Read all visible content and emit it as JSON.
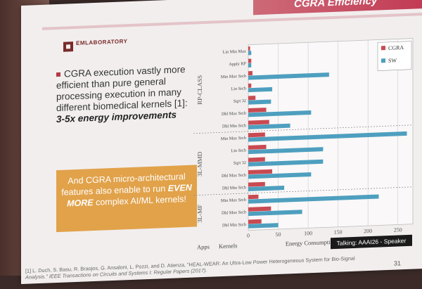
{
  "slide": {
    "title": "CGRA Efficiency",
    "logo_text": "EMLABORATORY",
    "bullet_text": "CGRA execution vastly more efficient than pure general processing execution in many different biomedical kernels [1]:",
    "bullet_emphasis": "3-5x energy improvements",
    "box_text_1": "And CGRA micro-architectural features also enable to run",
    "box_emphasis": "EVEN MORE",
    "box_text_2": "complex AI/ML kernels!",
    "reference_1": "[1] L. Duch, S. Basu, R. Braojos, G. Ansaloni, L. Pozzi, and D. Atienza, \"HEAL-WEAR: An Ultra-Low Power Heterogeneous System for Bio-Signal",
    "reference_2": "Analysis.\" IEEE Transactions on Circuits and Systems I: Regular Papers (2017).",
    "page_number": "31",
    "speaker_badge": "Talking: AAAI26 - Speaker"
  },
  "chart_data": {
    "type": "bar",
    "orientation": "horizontal",
    "xlabel": "Energy Consumption (µJ)",
    "col_label_apps": "Apps",
    "col_label_kernels": "Kernels",
    "xlim": [
      0,
      275
    ],
    "xticks": [
      0,
      50,
      100,
      150,
      200,
      250
    ],
    "grid": true,
    "legend_position": "top-right",
    "groups": [
      {
        "name": "RP-CLASS",
        "categories": [
          "Lin Min Max",
          "Apply RP",
          "Min Max Srch",
          "Lin Srch",
          "Sqrt 32",
          "Dbl Max Srch",
          "Dbl Min Srch"
        ]
      },
      {
        "name": "3L-MMD",
        "categories": [
          "Min Max Srch",
          "Lin Srch",
          "Sqrt 32",
          "Dbl Max Srch",
          "Dbl Min Srch"
        ]
      },
      {
        "name": "3L-MF",
        "categories": [
          "Min Max Srch",
          "Dbl Max Srch",
          "Dbl Min Srch"
        ]
      }
    ],
    "series": [
      {
        "name": "CGRA",
        "color": "#c94a52",
        "values": [
          3,
          5,
          7,
          5,
          12,
          30,
          35,
          28,
          30,
          28,
          40,
          28,
          17,
          38,
          22
        ]
      },
      {
        "name": "SW",
        "color": "#4e9fbf",
        "values": [
          5,
          5,
          135,
          40,
          38,
          105,
          70,
          265,
          125,
          125,
          105,
          60,
          218,
          90,
          50
        ]
      }
    ]
  }
}
